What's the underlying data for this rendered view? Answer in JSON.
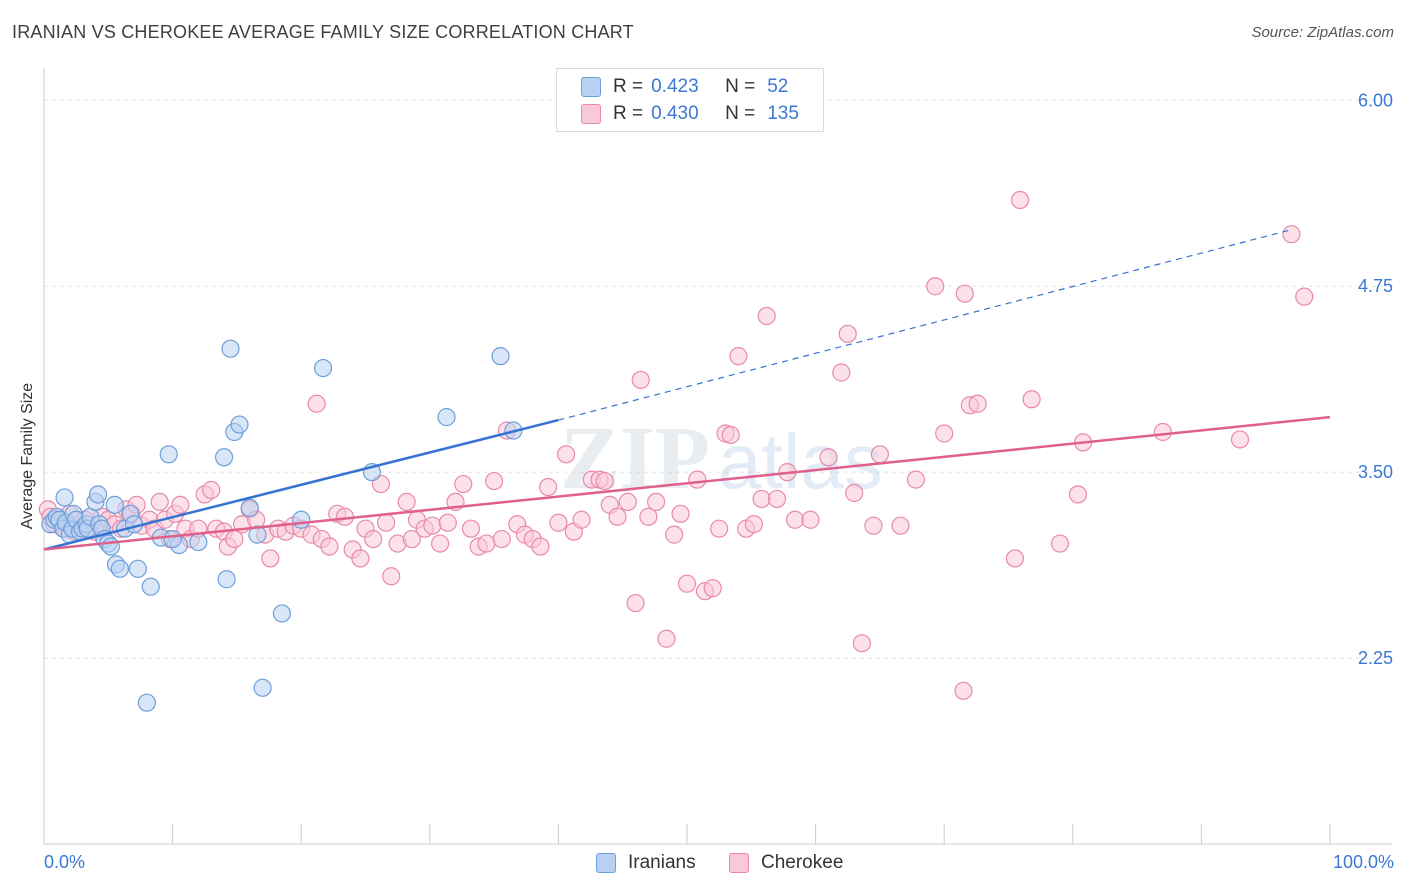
{
  "title": "IRANIAN VS CHEROKEE AVERAGE FAMILY SIZE CORRELATION CHART",
  "source": "Source: ZipAtlas.com",
  "watermark": {
    "zip": "ZIP",
    "atlas": "atlas"
  },
  "legend_stats": {
    "iranians": {
      "r_label": "R =",
      "r_value": "0.423",
      "n_label": "N =",
      "n_value": "52"
    },
    "cherokee": {
      "r_label": "R =",
      "r_value": "0.430",
      "n_label": "N =",
      "n_value": "135"
    }
  },
  "legend_bottom": {
    "iranians": "Iranians",
    "cherokee": "Cherokee"
  },
  "x_labels": {
    "left": "0.0%",
    "right": "100.0%"
  },
  "colors": {
    "iranians_fill": "#b8d1f3",
    "iranians_stroke": "#6e9fd9",
    "iranians_line": "#3473d1",
    "cherokee_fill": "#f9c9d8",
    "cherokee_stroke": "#e88aa8",
    "cherokee_line": "#e0608c",
    "tick_label": "#3b78d6",
    "grid": "#e3e3e3",
    "axis": "#cccccc"
  },
  "chart_data": {
    "type": "scatter",
    "title": "IRANIAN VS CHEROKEE AVERAGE FAMILY SIZE CORRELATION CHART",
    "xlabel": "",
    "ylabel": "Average Family Size",
    "xlim": [
      0,
      100
    ],
    "ylim": [
      1.0,
      6.15
    ],
    "y_ticks": [
      2.25,
      3.5,
      4.75,
      6.0
    ],
    "y_tick_labels": [
      "2.25",
      "3.50",
      "4.75",
      "6.00"
    ],
    "x_tick_labels": [
      "0.0%",
      "100.0%"
    ],
    "grid": true,
    "legend_position": "top-center",
    "series": [
      {
        "name": "Iranians",
        "r": 0.423,
        "n": 52,
        "trend": {
          "x0": 0,
          "y0": 2.98,
          "x1": 40,
          "y1": 3.85,
          "x_dash_end": 97,
          "y_dash_end": 5.13
        },
        "points": [
          [
            0.5,
            3.15
          ],
          [
            0.8,
            3.18
          ],
          [
            1.0,
            3.2
          ],
          [
            1.2,
            3.18
          ],
          [
            1.5,
            3.12
          ],
          [
            1.6,
            3.33
          ],
          [
            1.7,
            3.16
          ],
          [
            2.0,
            3.08
          ],
          [
            2.2,
            3.12
          ],
          [
            2.3,
            3.22
          ],
          [
            2.5,
            3.18
          ],
          [
            2.8,
            3.1
          ],
          [
            3.0,
            3.12
          ],
          [
            3.3,
            3.15
          ],
          [
            3.4,
            3.12
          ],
          [
            3.6,
            3.2
          ],
          [
            4.0,
            3.3
          ],
          [
            4.2,
            3.35
          ],
          [
            4.3,
            3.15
          ],
          [
            4.5,
            3.12
          ],
          [
            4.7,
            3.05
          ],
          [
            5.0,
            3.02
          ],
          [
            5.2,
            3.0
          ],
          [
            5.5,
            3.28
          ],
          [
            5.6,
            2.88
          ],
          [
            5.9,
            2.85
          ],
          [
            6.3,
            3.12
          ],
          [
            6.7,
            3.22
          ],
          [
            7.0,
            3.15
          ],
          [
            7.3,
            2.85
          ],
          [
            8.3,
            2.73
          ],
          [
            8.0,
            1.95
          ],
          [
            9.1,
            3.06
          ],
          [
            9.7,
            3.62
          ],
          [
            10.5,
            3.01
          ],
          [
            10.0,
            3.05
          ],
          [
            12.0,
            3.03
          ],
          [
            14.0,
            3.6
          ],
          [
            14.2,
            2.78
          ],
          [
            14.5,
            4.33
          ],
          [
            14.8,
            3.77
          ],
          [
            15.2,
            3.82
          ],
          [
            16.0,
            3.26
          ],
          [
            16.6,
            3.08
          ],
          [
            17.0,
            2.05
          ],
          [
            18.5,
            2.55
          ],
          [
            20.0,
            3.18
          ],
          [
            21.7,
            4.2
          ],
          [
            25.5,
            3.5
          ],
          [
            31.3,
            3.87
          ],
          [
            35.5,
            4.28
          ],
          [
            36.5,
            3.78
          ]
        ]
      },
      {
        "name": "Cherokee",
        "r": 0.43,
        "n": 135,
        "trend": {
          "x0": 0,
          "y0": 2.98,
          "x1": 100,
          "y1": 3.87
        },
        "points": [
          [
            0.3,
            3.25
          ],
          [
            0.5,
            3.2
          ],
          [
            0.8,
            3.15
          ],
          [
            1.2,
            3.18
          ],
          [
            1.6,
            3.12
          ],
          [
            2.0,
            3.22
          ],
          [
            2.4,
            3.1
          ],
          [
            2.8,
            3.15
          ],
          [
            3.2,
            3.18
          ],
          [
            3.6,
            3.12
          ],
          [
            4.0,
            3.1
          ],
          [
            4.5,
            3.2
          ],
          [
            5.0,
            3.18
          ],
          [
            5.5,
            3.15
          ],
          [
            6.0,
            3.12
          ],
          [
            6.4,
            3.25
          ],
          [
            6.8,
            3.22
          ],
          [
            7.2,
            3.28
          ],
          [
            7.6,
            3.14
          ],
          [
            8.2,
            3.18
          ],
          [
            8.6,
            3.12
          ],
          [
            9.0,
            3.3
          ],
          [
            9.4,
            3.18
          ],
          [
            9.8,
            3.05
          ],
          [
            10.2,
            3.22
          ],
          [
            10.6,
            3.28
          ],
          [
            11.0,
            3.12
          ],
          [
            11.4,
            3.05
          ],
          [
            12.0,
            3.12
          ],
          [
            12.5,
            3.35
          ],
          [
            13.0,
            3.38
          ],
          [
            13.4,
            3.12
          ],
          [
            14.0,
            3.1
          ],
          [
            14.3,
            3.0
          ],
          [
            14.8,
            3.05
          ],
          [
            15.4,
            3.15
          ],
          [
            16.0,
            3.25
          ],
          [
            16.5,
            3.18
          ],
          [
            17.2,
            3.08
          ],
          [
            17.6,
            2.92
          ],
          [
            18.2,
            3.12
          ],
          [
            18.8,
            3.1
          ],
          [
            19.4,
            3.14
          ],
          [
            20.0,
            3.12
          ],
          [
            20.8,
            3.08
          ],
          [
            21.2,
            3.96
          ],
          [
            21.6,
            3.05
          ],
          [
            22.2,
            3.0
          ],
          [
            22.8,
            3.22
          ],
          [
            23.4,
            3.2
          ],
          [
            24.0,
            2.98
          ],
          [
            24.6,
            2.92
          ],
          [
            25.0,
            3.12
          ],
          [
            25.6,
            3.05
          ],
          [
            26.2,
            3.42
          ],
          [
            26.6,
            3.16
          ],
          [
            27.0,
            2.8
          ],
          [
            27.5,
            3.02
          ],
          [
            28.2,
            3.3
          ],
          [
            28.6,
            3.05
          ],
          [
            29.0,
            3.18
          ],
          [
            29.6,
            3.12
          ],
          [
            30.2,
            3.14
          ],
          [
            30.8,
            3.02
          ],
          [
            31.4,
            3.16
          ],
          [
            32.0,
            3.3
          ],
          [
            32.6,
            3.42
          ],
          [
            33.2,
            3.12
          ],
          [
            33.8,
            3.0
          ],
          [
            34.4,
            3.02
          ],
          [
            35.0,
            3.44
          ],
          [
            35.6,
            3.05
          ],
          [
            36.0,
            3.78
          ],
          [
            36.8,
            3.15
          ],
          [
            37.4,
            3.08
          ],
          [
            38.0,
            3.05
          ],
          [
            38.6,
            3.0
          ],
          [
            39.2,
            3.4
          ],
          [
            40.0,
            3.16
          ],
          [
            40.6,
            3.62
          ],
          [
            41.2,
            3.1
          ],
          [
            41.8,
            3.18
          ],
          [
            42.6,
            3.45
          ],
          [
            43.2,
            3.45
          ],
          [
            43.6,
            3.44
          ],
          [
            44.0,
            3.28
          ],
          [
            44.6,
            3.2
          ],
          [
            45.4,
            3.3
          ],
          [
            46.0,
            2.62
          ],
          [
            46.4,
            4.12
          ],
          [
            47.0,
            3.2
          ],
          [
            47.6,
            3.3
          ],
          [
            48.4,
            2.38
          ],
          [
            49.0,
            3.08
          ],
          [
            49.5,
            3.22
          ],
          [
            50.0,
            2.75
          ],
          [
            50.8,
            3.45
          ],
          [
            51.4,
            2.7
          ],
          [
            52.0,
            2.72
          ],
          [
            52.5,
            3.12
          ],
          [
            53.0,
            3.76
          ],
          [
            53.4,
            3.75
          ],
          [
            54.0,
            4.28
          ],
          [
            54.6,
            3.12
          ],
          [
            55.2,
            3.15
          ],
          [
            55.8,
            3.32
          ],
          [
            56.2,
            4.55
          ],
          [
            57.0,
            3.32
          ],
          [
            57.8,
            3.5
          ],
          [
            58.4,
            3.18
          ],
          [
            59.6,
            3.18
          ],
          [
            61.0,
            3.6
          ],
          [
            62.0,
            4.17
          ],
          [
            62.5,
            4.43
          ],
          [
            63.0,
            3.36
          ],
          [
            63.6,
            2.35
          ],
          [
            64.5,
            3.14
          ],
          [
            65.0,
            3.62
          ],
          [
            66.6,
            3.14
          ],
          [
            67.8,
            3.45
          ],
          [
            69.3,
            4.75
          ],
          [
            70.0,
            3.76
          ],
          [
            71.6,
            4.7
          ],
          [
            72.0,
            3.95
          ],
          [
            72.6,
            3.96
          ],
          [
            71.5,
            2.03
          ],
          [
            75.5,
            2.92
          ],
          [
            75.9,
            5.33
          ],
          [
            76.8,
            3.99
          ],
          [
            79.0,
            3.02
          ],
          [
            80.4,
            3.35
          ],
          [
            80.8,
            3.7
          ],
          [
            87.0,
            3.77
          ],
          [
            93.0,
            3.72
          ],
          [
            97.0,
            5.1
          ],
          [
            98.0,
            4.68
          ]
        ]
      }
    ]
  }
}
